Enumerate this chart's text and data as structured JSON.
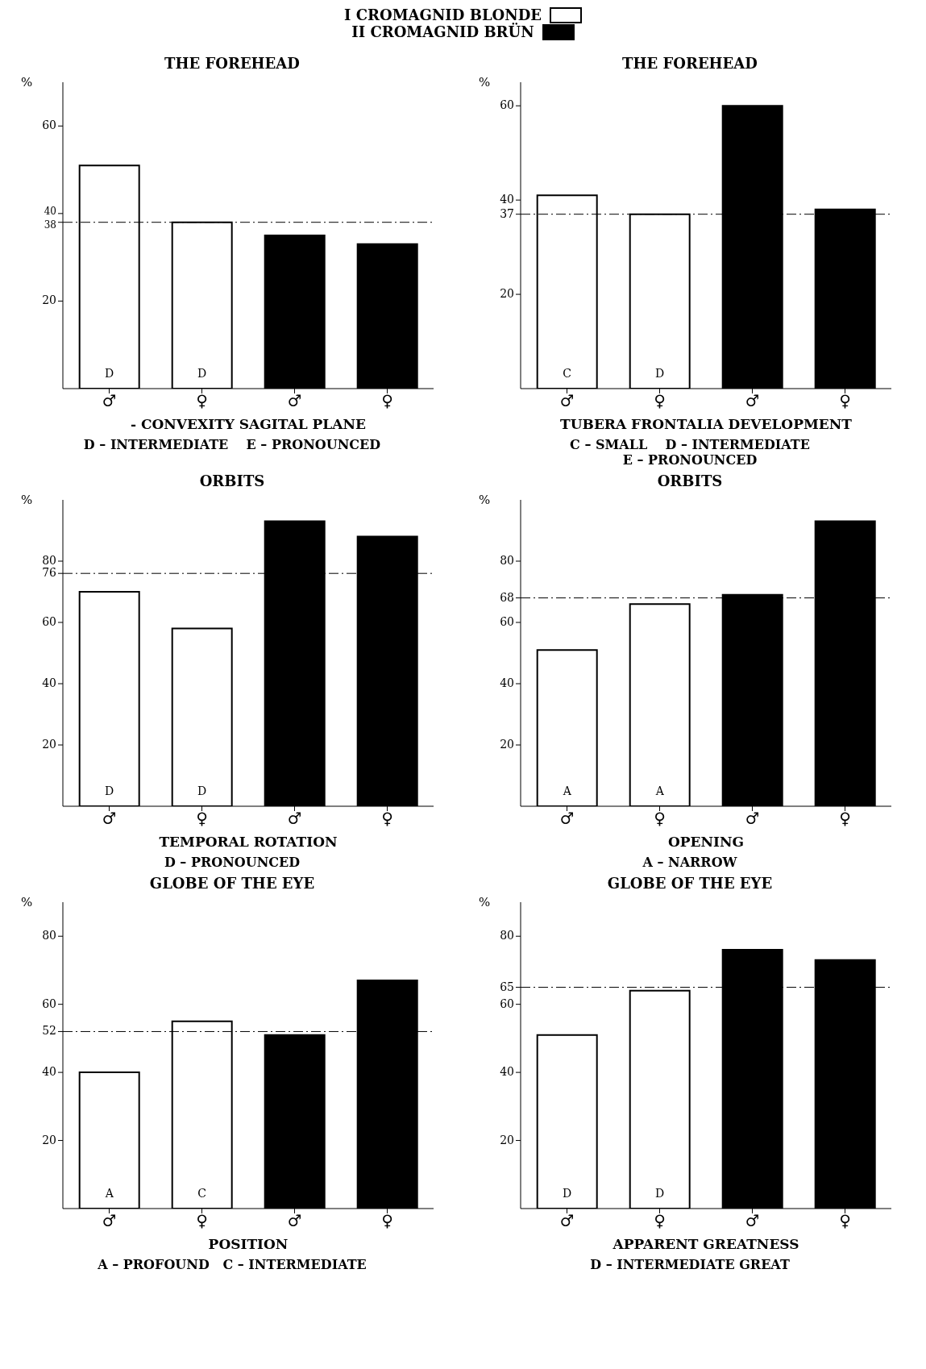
{
  "chart_data": [
    {
      "type": "bar",
      "title": "THE FOREHEAD",
      "xlabel": "- CONVEXITY SAGITAL PLANE",
      "ylabel": "%",
      "annotations": [
        "D – INTERMEDIATE    E – PRONOUNCED"
      ],
      "categories": [
        "♂",
        "♀",
        "♂",
        "♀"
      ],
      "stacked": true,
      "legend": "top",
      "series": [
        {
          "name": "I CROMAGNID BLONDE",
          "color": "#ffffff",
          "values": [
            51,
            38,
            null,
            null
          ],
          "value_labels": [
            "D",
            "D",
            null,
            null
          ]
        },
        {
          "name": "II CROMAGNID BRÜN",
          "color": "#000000",
          "values": [
            null,
            null,
            35,
            33
          ]
        }
      ],
      "ylim": [
        0,
        70
      ],
      "yticks": [
        20,
        38,
        40,
        60
      ],
      "ref_lines": [
        {
          "axis": "y",
          "value": 38
        }
      ]
    },
    {
      "type": "bar",
      "title": "THE FOREHEAD",
      "xlabel": "TUBERA FRONTALIA DEVELOPMENT",
      "ylabel": "%",
      "annotations": [
        "C – SMALL    D – INTERMEDIATE",
        "E – PRONOUNCED"
      ],
      "categories": [
        "♂",
        "♀",
        "♂",
        "♀"
      ],
      "stacked": true,
      "series": [
        {
          "color": "#ffffff",
          "values": [
            41,
            37,
            null,
            null
          ],
          "value_labels": [
            "C",
            "D",
            null,
            null
          ]
        },
        {
          "color": "#000000",
          "values": [
            null,
            null,
            60,
            38
          ]
        }
      ],
      "ylim": [
        0,
        65
      ],
      "yticks": [
        20,
        37,
        40,
        60
      ],
      "ref_lines": [
        {
          "axis": "y",
          "value": 37
        }
      ]
    },
    {
      "type": "bar",
      "title": "ORBITS",
      "xlabel": "TEMPORAL ROTATION",
      "ylabel": "%",
      "annotations": [
        "D – PRONOUNCED"
      ],
      "categories": [
        "♂",
        "♀",
        "♂",
        "♀"
      ],
      "stacked": true,
      "series": [
        {
          "color": "#ffffff",
          "values": [
            70,
            58,
            null,
            null
          ],
          "value_labels": [
            "D",
            "D",
            null,
            null
          ]
        },
        {
          "color": "#000000",
          "values": [
            null,
            null,
            93,
            88
          ]
        }
      ],
      "ylim": [
        0,
        100
      ],
      "yticks": [
        20,
        40,
        60,
        76,
        80
      ],
      "ref_lines": [
        {
          "axis": "y",
          "value": 76
        }
      ]
    },
    {
      "type": "bar",
      "title": "ORBITS",
      "xlabel": "OPENING",
      "ylabel": "%",
      "annotations": [
        "A – NARROW"
      ],
      "categories": [
        "♂",
        "♀",
        "♂",
        "♀"
      ],
      "stacked": true,
      "series": [
        {
          "color": "#ffffff",
          "values": [
            51,
            66,
            null,
            null
          ],
          "value_labels": [
            "A",
            "A",
            null,
            null
          ]
        },
        {
          "color": "#000000",
          "values": [
            null,
            null,
            69,
            93
          ]
        }
      ],
      "ylim": [
        0,
        100
      ],
      "yticks": [
        20,
        40,
        60,
        68,
        80
      ],
      "ref_lines": [
        {
          "axis": "y",
          "value": 68
        }
      ]
    },
    {
      "type": "bar",
      "title": "GLOBE OF THE EYE",
      "xlabel": "POSITION",
      "ylabel": "%",
      "annotations": [
        "A – PROFOUND   C – INTERMEDIATE"
      ],
      "categories": [
        "♂",
        "♀",
        "♂",
        "♀"
      ],
      "stacked": true,
      "series": [
        {
          "color": "#ffffff",
          "values": [
            40,
            55,
            null,
            null
          ],
          "value_labels": [
            "A",
            "C",
            null,
            null
          ]
        },
        {
          "color": "#000000",
          "values": [
            null,
            null,
            51,
            67
          ]
        }
      ],
      "ylim": [
        0,
        90
      ],
      "yticks": [
        20,
        40,
        52,
        60,
        80
      ],
      "ref_lines": [
        {
          "axis": "y",
          "value": 52
        }
      ]
    },
    {
      "type": "bar",
      "title": "GLOBE OF THE EYE",
      "xlabel": "APPARENT GREATNESS",
      "ylabel": "%",
      "annotations": [
        "D – INTERMEDIATE GREAT"
      ],
      "categories": [
        "♂",
        "♀",
        "♂",
        "♀"
      ],
      "stacked": true,
      "series": [
        {
          "color": "#ffffff",
          "values": [
            51,
            64,
            null,
            null
          ],
          "value_labels": [
            "D",
            "D",
            null,
            null
          ]
        },
        {
          "color": "#000000",
          "values": [
            null,
            null,
            76,
            73
          ]
        }
      ],
      "ylim": [
        0,
        90
      ],
      "yticks": [
        20,
        40,
        60,
        65,
        80
      ],
      "ref_lines": [
        {
          "axis": "y",
          "value": 65
        }
      ]
    }
  ]
}
